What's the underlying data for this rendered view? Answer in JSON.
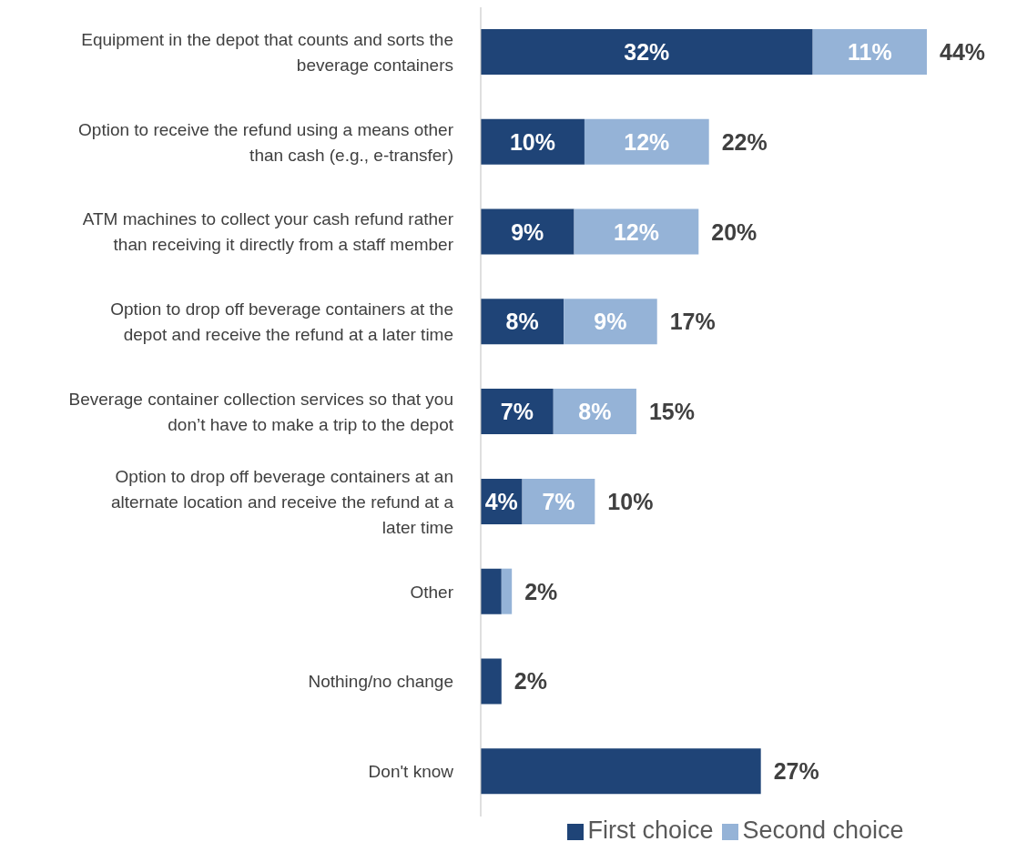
{
  "chart_data": {
    "type": "bar",
    "orientation": "horizontal",
    "stacked": true,
    "categories": [
      "Equipment in the depot that counts and sorts the beverage containers",
      "Option to receive the refund using a means other than cash (e.g., e-transfer)",
      "ATM machines to collect your cash refund rather than receiving it directly from a staff member",
      "Option to drop off beverage containers at the depot and receive the refund at a later time",
      "Beverage container collection services so that you don’t have to make a trip to the depot",
      "Option to drop off beverage containers at an alternate location and receive the refund at a later time",
      "Other",
      "Nothing/no change",
      "Don't know"
    ],
    "series": [
      {
        "name": "First choice",
        "color": "#1f4477",
        "values": [
          32,
          10,
          9,
          8,
          7,
          4,
          2,
          2,
          27
        ],
        "value_labels": [
          "32%",
          "10%",
          "9%",
          "8%",
          "7%",
          "4%",
          null,
          null,
          null
        ]
      },
      {
        "name": "Second choice",
        "color": "#95b3d7",
        "values": [
          11,
          12,
          12,
          9,
          8,
          7,
          1,
          null,
          null
        ],
        "value_labels": [
          "11%",
          "12%",
          "12%",
          "9%",
          "8%",
          "7%",
          null,
          null,
          null
        ]
      }
    ],
    "totals": [
      "44%",
      "22%",
      "20%",
      "17%",
      "15%",
      "10%",
      "2%",
      "2%",
      "27%"
    ],
    "tick_labels": "y",
    "legend": "bottom"
  }
}
